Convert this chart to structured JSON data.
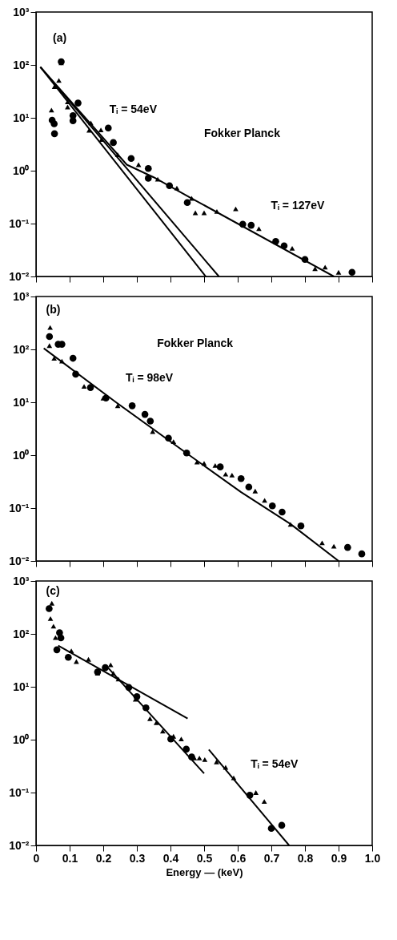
{
  "chart_data": [
    {
      "type": "scatter",
      "xlim": [
        0,
        1
      ],
      "ylim": [
        0.01,
        1000
      ],
      "log": true,
      "tick_labels": "y",
      "yticks": [
        {
          "value": 0.01,
          "label": "10⁻²"
        },
        {
          "value": 0.1,
          "label": "10⁻¹"
        },
        {
          "value": 1,
          "label": "10⁰"
        },
        {
          "value": 10,
          "label": "10¹"
        },
        {
          "value": 100,
          "label": "10²"
        },
        {
          "value": 1000,
          "label": "10³"
        }
      ],
      "annotations": [
        "(a)",
        "Fokker Planck",
        {
          "text": "Tᵢ = 54eV",
          "x": 0.19,
          "y": 5
        },
        {
          "text": "Tᵢ = 127eV",
          "x": 0.67,
          "y": 0.075
        }
      ],
      "xticks": [
        0,
        0.1,
        0.2,
        0.3,
        0.4,
        0.5,
        0.6,
        0.7,
        0.8,
        0.9,
        1
      ],
      "series": [
        {
          "type": "line",
          "color": "#000000",
          "x": [
            0.013,
            0.505
          ],
          "values": [
            91,
            0.01
          ]
        },
        {
          "type": "line",
          "color": "#000000",
          "x": [
            0.013,
            0.544
          ],
          "values": [
            91,
            0.01
          ]
        },
        {
          "type": "line",
          "color": "#000000",
          "x": [
            0.013,
            0.27,
            0.35,
            0.463,
            0.886
          ],
          "values": [
            91,
            1.3,
            0.75,
            0.3,
            0.01
          ]
        },
        {
          "type": "scatter",
          "marker": "circle",
          "color": "#000000",
          "x": [
            0.048,
            0.054,
            0.055,
            0.075,
            0.11,
            0.11,
            0.125,
            0.215,
            0.23,
            0.283,
            0.334,
            0.334,
            0.397,
            0.45,
            0.615,
            0.64,
            0.713,
            0.738,
            0.8,
            0.94
          ],
          "values": [
            9,
            7.7,
            5,
            115,
            11,
            8.8,
            19,
            6.4,
            3.4,
            1.7,
            1.1,
            0.72,
            0.52,
            0.25,
            0.097,
            0.093,
            0.046,
            0.038,
            0.021,
            0.012
          ]
        },
        {
          "type": "scatter",
          "marker": "triangle",
          "color": "#000000",
          "x": [
            0.046,
            0.055,
            0.068,
            0.075,
            0.094,
            0.094,
            0.158,
            0.163,
            0.193,
            0.195,
            0.243,
            0.305,
            0.362,
            0.419,
            0.463,
            0.474,
            0.5,
            0.538,
            0.594,
            0.663,
            0.762,
            0.83,
            0.86,
            0.9
          ],
          "values": [
            14,
            39,
            51,
            110,
            20,
            16,
            5.8,
            8,
            5.9,
            3.9,
            2,
            1.3,
            0.69,
            0.47,
            0.3,
            0.16,
            0.16,
            0.17,
            0.19,
            0.08,
            0.034,
            0.014,
            0.015,
            0.012
          ]
        }
      ]
    },
    {
      "type": "scatter",
      "xlim": [
        0,
        1
      ],
      "ylim": [
        0.01,
        1000
      ],
      "log": true,
      "tick_labels": "y",
      "xticks": [
        0,
        0.1,
        0.2,
        0.3,
        0.4,
        0.5,
        0.6,
        0.7,
        0.8,
        0.9,
        1
      ],
      "yticks": [
        {
          "value": 0.01,
          "label": "10⁻²"
        },
        {
          "value": 0.1,
          "label": "10⁻¹"
        },
        {
          "value": 1,
          "label": "10⁰"
        },
        {
          "value": 10,
          "label": "10¹"
        },
        {
          "value": 100,
          "label": "10²"
        },
        {
          "value": 1000,
          "label": "10³"
        }
      ],
      "annotations": [
        "(b)",
        "Fokker Planck",
        {
          "text": "Tᵢ = 98eV",
          "x": 0.238,
          "y": 10
        }
      ],
      "series": [
        {
          "type": "line",
          "color": "#000000",
          "x": [
            0.023,
            0.238,
            0.456,
            0.61,
            0.757,
            0.9
          ],
          "values": [
            105,
            10,
            1,
            0.2,
            0.05,
            0.01
          ]
        },
        {
          "type": "scatter",
          "marker": "circle",
          "color": "#000000",
          "x": [
            0.04,
            0.066,
            0.077,
            0.11,
            0.118,
            0.162,
            0.208,
            0.286,
            0.324,
            0.34,
            0.394,
            0.448,
            0.548,
            0.61,
            0.633,
            0.703,
            0.732,
            0.788,
            0.927,
            0.969
          ],
          "values": [
            175,
            125,
            125,
            68,
            34,
            19,
            12,
            8.6,
            5.9,
            4.4,
            2.1,
            1.1,
            0.6,
            0.36,
            0.25,
            0.11,
            0.084,
            0.046,
            0.018,
            0.0136
          ]
        },
        {
          "type": "scatter",
          "marker": "triangle",
          "color": "#000000",
          "x": [
            0.042,
            0.04,
            0.054,
            0.077,
            0.143,
            0.2,
            0.243,
            0.347,
            0.409,
            0.479,
            0.5,
            0.533,
            0.564,
            0.583,
            0.652,
            0.68,
            0.757,
            0.851,
            0.886
          ],
          "values": [
            260,
            118,
            68,
            60,
            20,
            12,
            8.6,
            2.8,
            1.8,
            0.74,
            0.7,
            0.64,
            0.44,
            0.42,
            0.21,
            0.14,
            0.049,
            0.022,
            0.019
          ]
        }
      ]
    },
    {
      "type": "scatter",
      "xlim": [
        0,
        1
      ],
      "ylim": [
        0.01,
        1000
      ],
      "log": true,
      "xlabel": "Energy — (keV)",
      "xticks": [
        0,
        0.1,
        0.2,
        0.3,
        0.4,
        0.5,
        0.6,
        0.7,
        0.8,
        0.9,
        {
          "value": 1,
          "label": "1.0"
        }
      ],
      "yticks": [
        {
          "value": 0.01,
          "label": "10⁻²"
        },
        {
          "value": 0.1,
          "label": "10⁻¹"
        },
        {
          "value": 1,
          "label": "10⁰"
        },
        {
          "value": 10,
          "label": "10¹"
        },
        {
          "value": 100,
          "label": "10²"
        },
        {
          "value": 1000,
          "label": "10³"
        }
      ],
      "annotations": [
        "(c)",
        {
          "text": "Tᵢ = 54eV",
          "x": 0.61,
          "y": 0.12
        }
      ],
      "series": [
        {
          "type": "line",
          "color": "#000000",
          "x": [
            0.066,
            0.451
          ],
          "values": [
            60,
            2.5
          ]
        },
        {
          "type": "line",
          "color": "#000000",
          "x": [
            0.214,
            0.5
          ],
          "values": [
            23,
            0.23
          ]
        },
        {
          "type": "line",
          "color": "#000000",
          "x": [
            0.514,
            0.753
          ],
          "values": [
            0.65,
            0.01
          ]
        },
        {
          "type": "scatter",
          "marker": "circle",
          "color": "#000000",
          "x": [
            0.039,
            0.07,
            0.074,
            0.062,
            0.096,
            0.183,
            0.206,
            0.276,
            0.3,
            0.327,
            0.401,
            0.447,
            0.463,
            0.636,
            0.7,
            0.731
          ],
          "values": [
            300,
            105,
            84,
            50,
            36,
            19,
            23,
            9.7,
            6.5,
            4,
            1.03,
            0.66,
            0.47,
            0.089,
            0.021,
            0.024
          ]
        },
        {
          "type": "scatter",
          "marker": "triangle",
          "color": "#000000",
          "x": [
            0.047,
            0.043,
            0.052,
            0.058,
            0.105,
            0.12,
            0.156,
            0.183,
            0.222,
            0.23,
            0.245,
            0.296,
            0.339,
            0.358,
            0.377,
            0.409,
            0.432,
            0.471,
            0.486,
            0.502,
            0.537,
            0.564,
            0.588,
            0.654,
            0.679
          ],
          "values": [
            380,
            195,
            140,
            85,
            48,
            30,
            33,
            18,
            26,
            18,
            14,
            5.8,
            2.5,
            2.1,
            1.45,
            1.16,
            1.03,
            0.45,
            0.45,
            0.42,
            0.38,
            0.3,
            0.19,
            0.1,
            0.068
          ]
        }
      ]
    }
  ]
}
